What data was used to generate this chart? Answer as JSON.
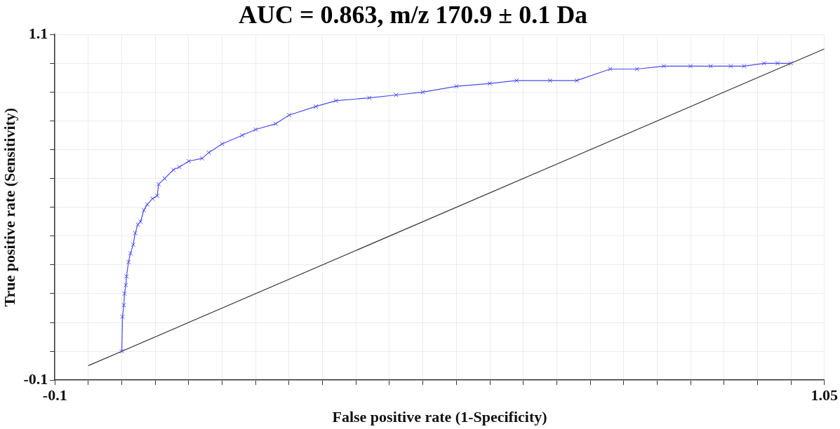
{
  "chart_data": {
    "type": "line",
    "title": "AUC = 0.863, m/z 170.9 ± 0.1 Da",
    "xlabel": "False positive rate (1-Specificity)",
    "ylabel": "True positive rate (Sensitivity)",
    "xlim": [
      -0.1,
      1.05
    ],
    "ylim": [
      -0.1,
      1.1
    ],
    "xticks": [
      -0.1,
      {
        "value": -0.05,
        "label": null
      },
      {
        "value": 0,
        "label": null
      },
      {
        "value": 0.05,
        "label": null
      },
      {
        "value": 0.1,
        "label": null
      },
      {
        "value": 0.15,
        "label": null
      },
      {
        "value": 0.2,
        "label": null
      },
      {
        "value": 0.25,
        "label": null
      },
      {
        "value": 0.3,
        "label": null
      },
      {
        "value": 0.35,
        "label": null
      },
      {
        "value": 0.4,
        "label": null
      },
      {
        "value": 0.45,
        "label": null
      },
      {
        "value": 0.5,
        "label": null
      },
      {
        "value": 0.55,
        "label": null
      },
      {
        "value": 0.6,
        "label": null
      },
      {
        "value": 0.65,
        "label": null
      },
      {
        "value": 0.7,
        "label": null
      },
      {
        "value": 0.75,
        "label": null
      },
      {
        "value": 0.8,
        "label": null
      },
      {
        "value": 0.85,
        "label": null
      },
      {
        "value": 0.9,
        "label": null
      },
      {
        "value": 0.95,
        "label": null
      },
      {
        "value": 1,
        "label": null
      },
      1.05
    ],
    "yticks": [
      -0.1,
      {
        "value": 0,
        "label": null
      },
      {
        "value": 0.1,
        "label": null
      },
      {
        "value": 0.2,
        "label": null
      },
      {
        "value": 0.3,
        "label": null
      },
      {
        "value": 0.4,
        "label": null
      },
      {
        "value": 0.5,
        "label": null
      },
      {
        "value": 0.6,
        "label": null
      },
      {
        "value": 0.7,
        "label": null
      },
      {
        "value": 0.8,
        "label": null
      },
      {
        "value": 0.9,
        "label": null
      },
      {
        "value": 1,
        "label": null
      },
      1.1
    ],
    "grid": true,
    "series": [
      {
        "color": "#4a4af0",
        "marker": "cross",
        "x": [
          0,
          0.001,
          0.003,
          0.004,
          0.006,
          0.007,
          0.01,
          0.013,
          0.017,
          0.02,
          0.024,
          0.028,
          0.033,
          0.038,
          0.046,
          0.053,
          0.055,
          0.064,
          0.077,
          0.086,
          0.1,
          0.12,
          0.13,
          0.15,
          0.18,
          0.2,
          0.23,
          0.25,
          0.29,
          0.32,
          0.37,
          0.41,
          0.45,
          0.5,
          0.55,
          0.59,
          0.64,
          0.68,
          0.73,
          0.77,
          0.81,
          0.85,
          0.88,
          0.91,
          0.93,
          0.96,
          0.98,
          1
        ],
        "values": [
          0,
          0.12,
          0.16,
          0.2,
          0.23,
          0.26,
          0.31,
          0.34,
          0.37,
          0.41,
          0.44,
          0.45,
          0.49,
          0.51,
          0.53,
          0.54,
          0.58,
          0.6,
          0.63,
          0.64,
          0.66,
          0.67,
          0.69,
          0.72,
          0.75,
          0.77,
          0.79,
          0.82,
          0.85,
          0.87,
          0.88,
          0.89,
          0.9,
          0.92,
          0.93,
          0.94,
          0.94,
          0.94,
          0.98,
          0.98,
          0.99,
          0.99,
          0.99,
          0.99,
          0.99,
          1,
          1,
          1
        ]
      },
      {
        "color": "#333333",
        "marker": "none",
        "x": [
          -0.05,
          1.05
        ],
        "values": [
          -0.05,
          1.05
        ]
      }
    ]
  }
}
